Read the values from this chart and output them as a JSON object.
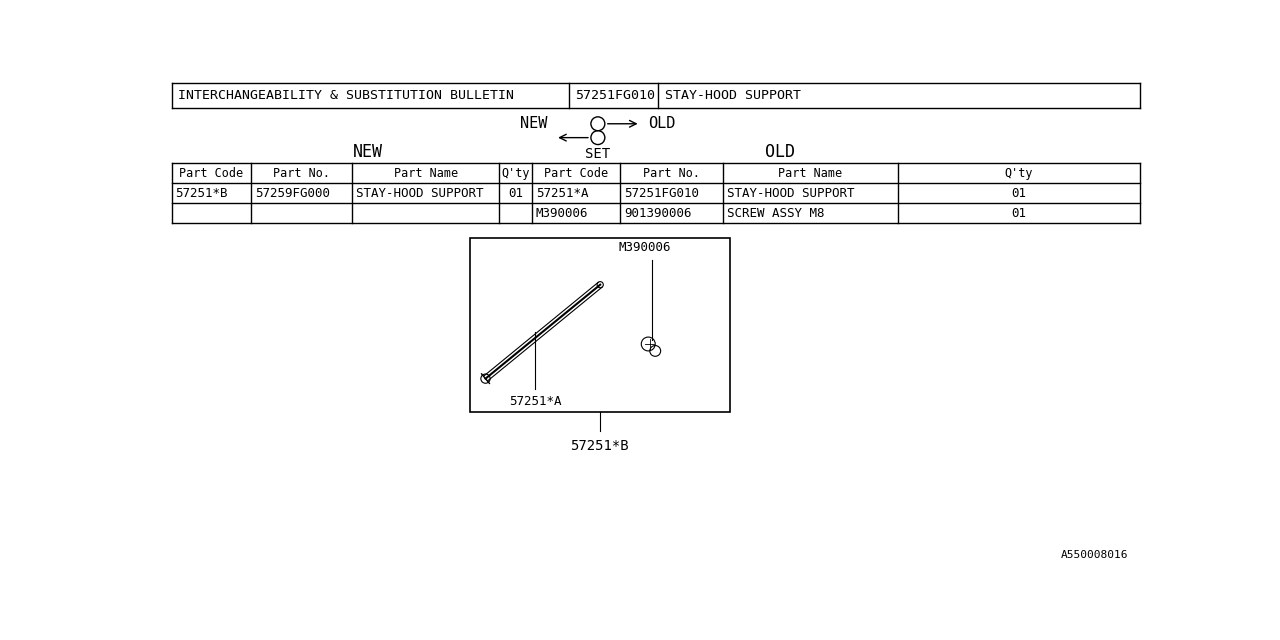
{
  "bg_color": "#ffffff",
  "text_color": "#000000",
  "font_family": "monospace",
  "header_row": {
    "col1": "INTERCHANGEABILITY & SUBSTITUTION BULLETIN",
    "col2": "57251FG010",
    "col3": "STAY-HOOD SUPPORT"
  },
  "legend_new": "NEW",
  "legend_old": "OLD",
  "legend_set": "SET",
  "table_headers": [
    "Part Code",
    "Part No.",
    "Part Name",
    "Q'ty",
    "Part Code",
    "Part No.",
    "Part Name",
    "Q'ty"
  ],
  "new_rows": [
    [
      "57251*B",
      "57259FG000",
      "STAY-HOOD SUPPORT",
      "01"
    ]
  ],
  "old_rows": [
    [
      "57251*A",
      "57251FG010",
      "STAY-HOOD SUPPORT",
      "01"
    ],
    [
      "M390006",
      "901390006",
      "SCREW ASSY M8",
      "01"
    ]
  ],
  "watermark": "A550008016"
}
